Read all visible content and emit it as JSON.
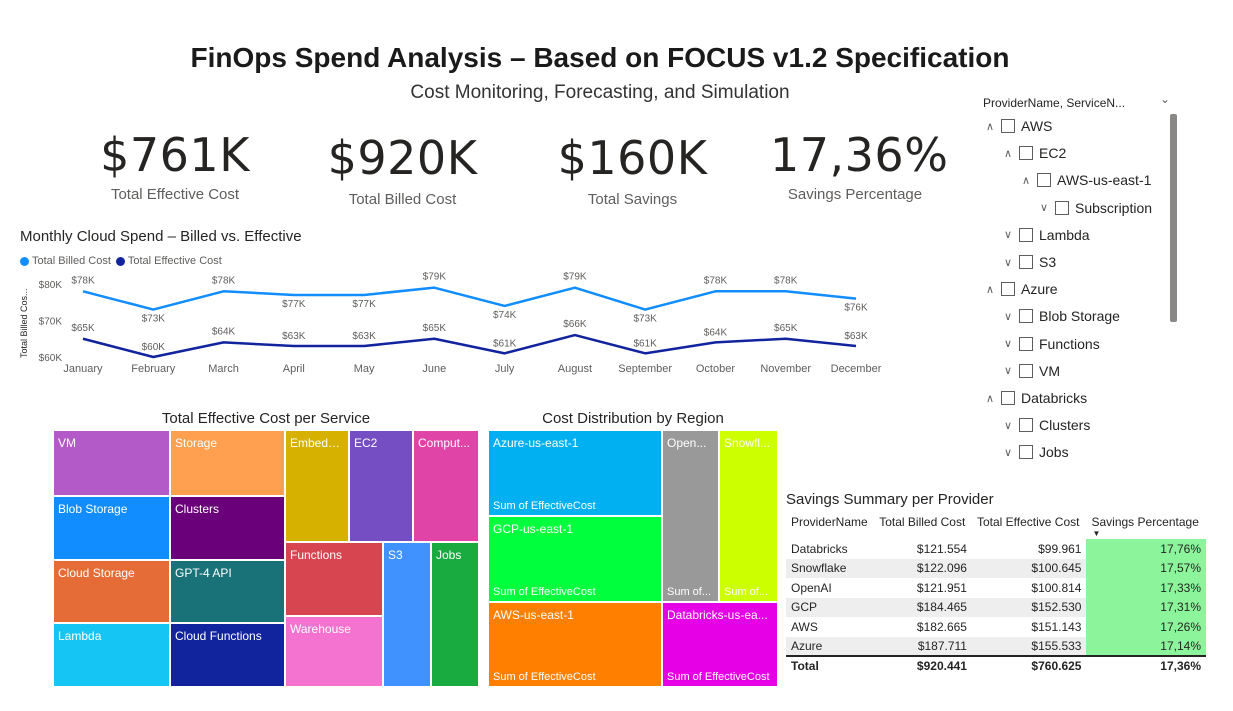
{
  "header": {
    "title": "FinOps Spend Analysis – Based on FOCUS v1.2 Specification",
    "subtitle": "Cost Monitoring, Forecasting, and Simulation"
  },
  "kpis": [
    {
      "value": "$761K",
      "label": "Total Effective Cost"
    },
    {
      "value": "$920K",
      "label": "Total Billed Cost"
    },
    {
      "value": "$160K",
      "label": "Total Savings"
    },
    {
      "value": "17,36%",
      "label": "Savings Percentage"
    }
  ],
  "chart_data": [
    {
      "type": "line",
      "title": "Monthly Cloud Spend – Billed vs. Effective",
      "ylabel": "Total Billed Cos...",
      "xlabel": "",
      "yticks": [
        "$60K",
        "$70K",
        "$80K"
      ],
      "ylim": [
        60,
        80
      ],
      "grid": false,
      "legend_position": "top-left",
      "categories": [
        "January",
        "February",
        "March",
        "April",
        "May",
        "June",
        "July",
        "August",
        "September",
        "October",
        "November",
        "December"
      ],
      "series": [
        {
          "name": "Total Billed Cost",
          "color": "#118dff",
          "values": [
            78,
            73,
            78,
            77,
            77,
            79,
            74,
            79,
            73,
            78,
            78,
            76
          ],
          "labels": [
            "$78K",
            "$73K",
            "$78K",
            "$77K",
            "$77K",
            "$79K",
            "$74K",
            "$79K",
            "$73K",
            "$78K",
            "$78K",
            "$76K"
          ]
        },
        {
          "name": "Total Effective Cost",
          "color": "#12239e",
          "values": [
            65,
            60,
            64,
            63,
            63,
            65,
            61,
            66,
            61,
            64,
            65,
            63
          ],
          "labels": [
            "$65K",
            "$60K",
            "$64K",
            "$63K",
            "$63K",
            "$65K",
            "$61K",
            "$66K",
            "$61K",
            "$64K",
            "$65K",
            "$63K"
          ]
        }
      ]
    },
    {
      "type": "treemap",
      "title": "Total Effective Cost per Service",
      "tiles": [
        {
          "label": "VM",
          "color": "#b35ac8"
        },
        {
          "label": "Storage",
          "color": "#ff9f50"
        },
        {
          "label": "Embedd...",
          "color": "#d6b100"
        },
        {
          "label": "EC2",
          "color": "#744ec2"
        },
        {
          "label": "Comput...",
          "color": "#e044a7"
        },
        {
          "label": "Blob Storage",
          "color": "#118dff"
        },
        {
          "label": "Clusters",
          "color": "#6b007b"
        },
        {
          "label": "Functions",
          "color": "#d64550"
        },
        {
          "label": "S3",
          "color": "#3f92ff"
        },
        {
          "label": "Jobs",
          "color": "#1aab40"
        },
        {
          "label": "Cloud Storage",
          "color": "#e66c37"
        },
        {
          "label": "GPT-4 API",
          "color": "#197278"
        },
        {
          "label": "Warehouse",
          "color": "#f472d0"
        },
        {
          "label": "Lambda",
          "color": "#15c6f4"
        },
        {
          "label": "Cloud Functions",
          "color": "#12239e"
        }
      ]
    },
    {
      "type": "treemap",
      "title": "Cost Distribution by Region",
      "tiles": [
        {
          "label": "Azure-us-east-1",
          "sum": "Sum of EffectiveCost",
          "color": "#00b0f0"
        },
        {
          "label": "Open...",
          "sum": "Sum of...",
          "color": "#999999"
        },
        {
          "label": "Snowfl...",
          "sum": "Sum of...",
          "color": "#ccff00"
        },
        {
          "label": "GCP-us-east-1",
          "sum": "Sum of EffectiveCost",
          "color": "#00ff3c"
        },
        {
          "label": "AWS-us-east-1",
          "sum": "Sum of EffectiveCost",
          "color": "#ff7f00"
        },
        {
          "label": "Databricks-us-ea...",
          "sum": "Sum of EffectiveCost",
          "color": "#e600e6"
        }
      ]
    }
  ],
  "slicer": {
    "header": "ProviderName, ServiceN...",
    "items": [
      {
        "label": "AWS",
        "level": 0,
        "expanded": true
      },
      {
        "label": "EC2",
        "level": 1,
        "expanded": true
      },
      {
        "label": "AWS-us-east-1",
        "level": 2,
        "expanded": true
      },
      {
        "label": "Subscription",
        "level": 3,
        "expanded": false
      },
      {
        "label": "Lambda",
        "level": 1,
        "expanded": false
      },
      {
        "label": "S3",
        "level": 1,
        "expanded": false
      },
      {
        "label": "Azure",
        "level": 0,
        "expanded": true
      },
      {
        "label": "Blob Storage",
        "level": 1,
        "expanded": false
      },
      {
        "label": "Functions",
        "level": 1,
        "expanded": false
      },
      {
        "label": "VM",
        "level": 1,
        "expanded": false
      },
      {
        "label": "Databricks",
        "level": 0,
        "expanded": true
      },
      {
        "label": "Clusters",
        "level": 1,
        "expanded": false
      },
      {
        "label": "Jobs",
        "level": 1,
        "expanded": false
      }
    ]
  },
  "savings_table": {
    "title": "Savings Summary per Provider",
    "columns": [
      "ProviderName",
      "Total Billed Cost",
      "Total Effective Cost",
      "Savings Percentage"
    ],
    "rows": [
      [
        "Databricks",
        "$121.554",
        "$99.961",
        "17,76%"
      ],
      [
        "Snowflake",
        "$122.096",
        "$100.645",
        "17,57%"
      ],
      [
        "OpenAI",
        "$121.951",
        "$100.814",
        "17,33%"
      ],
      [
        "GCP",
        "$184.465",
        "$152.530",
        "17,31%"
      ],
      [
        "AWS",
        "$182.665",
        "$151.143",
        "17,26%"
      ],
      [
        "Azure",
        "$187.711",
        "$155.533",
        "17,14%"
      ]
    ],
    "total": [
      "Total",
      "$920.441",
      "$760.625",
      "17,36%"
    ],
    "highlight_color": "#8cf59b"
  }
}
